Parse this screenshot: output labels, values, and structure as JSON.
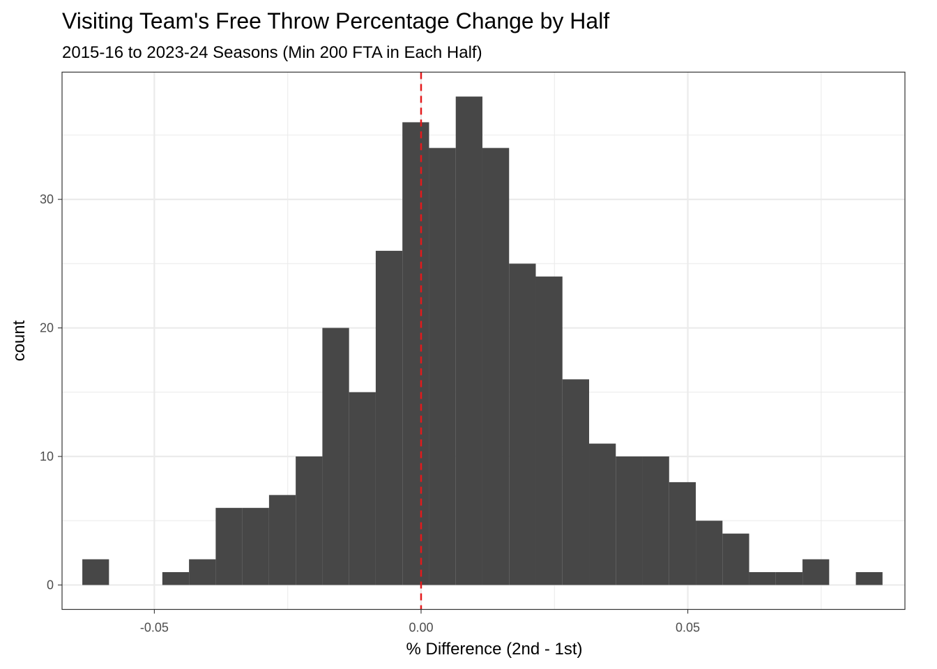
{
  "chart_data": {
    "type": "bar",
    "title": "Visiting Team's Free Throw Percentage Change by Half",
    "subtitle": "2015-16 to 2023-24 Seasons (Min 200 FTA in Each Half)",
    "xlabel": "% Difference (2nd - 1st)",
    "ylabel": "count",
    "xlim": [
      -0.0673,
      0.0907
    ],
    "ylim": [
      -1.9,
      39.9
    ],
    "bin_width": 0.005,
    "bins": [
      {
        "x0": -0.0635,
        "count": 2
      },
      {
        "x0": -0.0585,
        "count": 0
      },
      {
        "x0": -0.0535,
        "count": 0
      },
      {
        "x0": -0.0485,
        "count": 1
      },
      {
        "x0": -0.0435,
        "count": 2
      },
      {
        "x0": -0.0385,
        "count": 6
      },
      {
        "x0": -0.0335,
        "count": 6
      },
      {
        "x0": -0.0285,
        "count": 7
      },
      {
        "x0": -0.0235,
        "count": 10
      },
      {
        "x0": -0.0185,
        "count": 20
      },
      {
        "x0": -0.0135,
        "count": 15
      },
      {
        "x0": -0.0085,
        "count": 26
      },
      {
        "x0": -0.0035,
        "count": 36
      },
      {
        "x0": 0.0015,
        "count": 34
      },
      {
        "x0": 0.0065,
        "count": 38
      },
      {
        "x0": 0.0115,
        "count": 34
      },
      {
        "x0": 0.0165,
        "count": 25
      },
      {
        "x0": 0.0215,
        "count": 24
      },
      {
        "x0": 0.0265,
        "count": 16
      },
      {
        "x0": 0.0315,
        "count": 11
      },
      {
        "x0": 0.0365,
        "count": 10
      },
      {
        "x0": 0.0415,
        "count": 10
      },
      {
        "x0": 0.0465,
        "count": 8
      },
      {
        "x0": 0.0515,
        "count": 5
      },
      {
        "x0": 0.0565,
        "count": 4
      },
      {
        "x0": 0.0615,
        "count": 1
      },
      {
        "x0": 0.0665,
        "count": 1
      },
      {
        "x0": 0.0715,
        "count": 2
      },
      {
        "x0": 0.0765,
        "count": 0
      },
      {
        "x0": 0.0815,
        "count": 1
      }
    ],
    "x_ticks": [
      {
        "value": -0.05,
        "label": "-0.05"
      },
      {
        "value": 0.0,
        "label": "0.00"
      },
      {
        "value": 0.05,
        "label": "0.05"
      }
    ],
    "y_ticks": [
      {
        "value": 0,
        "label": "0"
      },
      {
        "value": 10,
        "label": "10"
      },
      {
        "value": 20,
        "label": "20"
      },
      {
        "value": 30,
        "label": "30"
      }
    ],
    "x_minor_grid": [
      -0.075,
      -0.025,
      0.025,
      0.075
    ],
    "y_minor_grid": [
      5,
      15,
      25,
      35
    ],
    "reference_line": {
      "x": 0.0,
      "style": "dashed",
      "color": "#e41a1c"
    },
    "bar_color": "#474747",
    "grid": true,
    "legend": "none"
  }
}
